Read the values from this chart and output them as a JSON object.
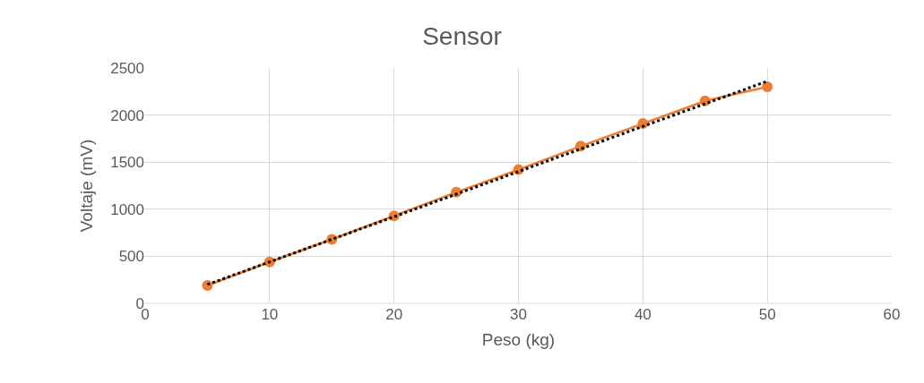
{
  "chart_data": {
    "type": "line",
    "title": "Sensor",
    "xlabel": "Peso (kg)",
    "ylabel": "Voltaje (mV)",
    "x": [
      5,
      10,
      15,
      20,
      25,
      30,
      35,
      40,
      45,
      50
    ],
    "series": [
      {
        "color": "#ed7d31",
        "values": [
          190,
          440,
          680,
          930,
          1180,
          1420,
          1670,
          1910,
          2150,
          2300
        ]
      },
      {
        "type": "line",
        "x": [
          5,
          50
        ],
        "color": "#000000",
        "values": [
          200,
          2360
        ],
        "line_style": "dotted",
        "marker": "none"
      }
    ],
    "xlim": [
      0,
      60
    ],
    "xticks": [
      0,
      10,
      20,
      30,
      40,
      50,
      60
    ],
    "ylim": [
      0,
      2500
    ],
    "yticks": [
      0,
      500,
      1000,
      1500,
      2000,
      2500
    ],
    "grid": true,
    "marker": "circle",
    "line_style": "solid"
  }
}
